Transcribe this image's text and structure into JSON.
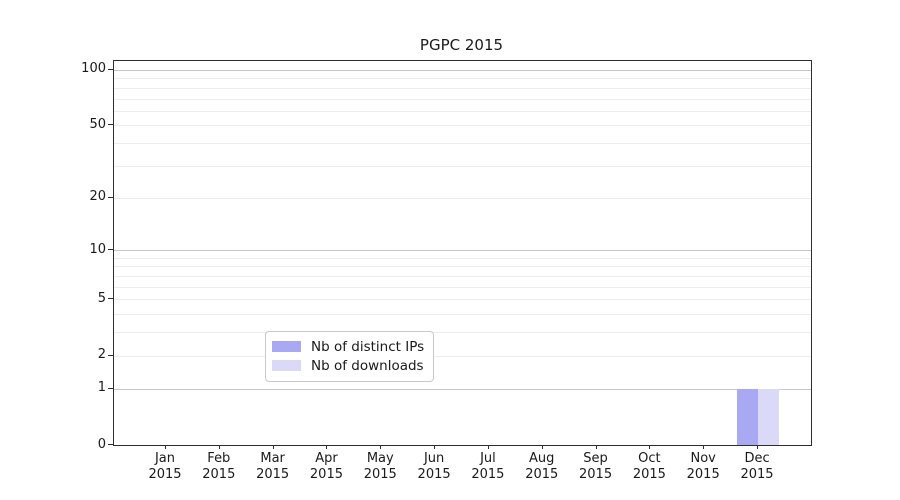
{
  "chart_data": {
    "type": "bar",
    "title": "PGPC 2015",
    "categories": [
      "Jan",
      "Feb",
      "Mar",
      "Apr",
      "May",
      "Jun",
      "Jul",
      "Aug",
      "Sep",
      "Oct",
      "Nov",
      "Dec"
    ],
    "category_year": "2015",
    "series": [
      {
        "name": "Nb of distinct IPs",
        "color": "#a9a9f3",
        "values": [
          0,
          0,
          0,
          0,
          0,
          0,
          0,
          0,
          0,
          0,
          0,
          1
        ]
      },
      {
        "name": "Nb of downloads",
        "color": "#dadaf8",
        "values": [
          0,
          0,
          0,
          0,
          0,
          0,
          0,
          0,
          0,
          0,
          0,
          1
        ]
      }
    ],
    "xlabel": "",
    "ylabel": "",
    "yscale": "log1p",
    "ylim": [
      0,
      112
    ],
    "ytick_values": [
      0,
      1,
      2,
      5,
      10,
      20,
      50,
      100
    ],
    "ytick_labels": [
      "0",
      "1",
      "2",
      "5",
      "10",
      "20",
      "50",
      "100"
    ],
    "major_gridline_values": [
      1,
      10,
      100
    ],
    "minor_gridline_values": [
      2,
      3,
      4,
      5,
      6,
      7,
      8,
      9,
      20,
      30,
      40,
      50,
      60,
      70,
      80,
      90
    ],
    "grid": true,
    "legend_position": "lower center",
    "colors": {
      "major_grid": "#c9c9c9",
      "minor_grid": "#ededed",
      "axis": "#2e2e2e",
      "text": "#1a1a1a"
    }
  }
}
